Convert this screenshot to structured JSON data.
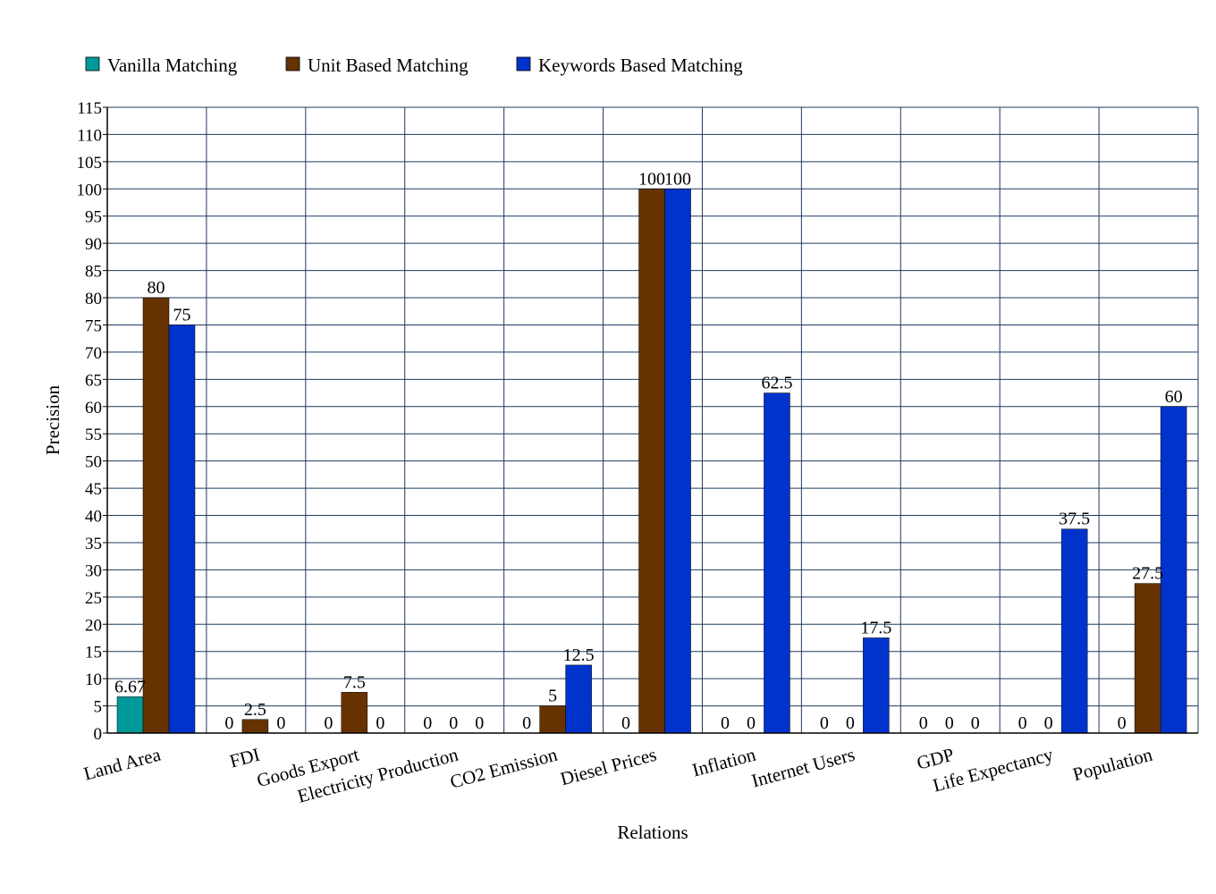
{
  "chart_data": {
    "type": "bar",
    "xlabel": "Relations",
    "ylabel": "Precision",
    "ylim": [
      0,
      115
    ],
    "ytick_step": 5,
    "grid": true,
    "legend_position": "top-left",
    "categories": [
      "Land Area",
      "FDI",
      "Goods Export",
      "Electricity Production",
      "CO2 Emission",
      "Diesel Prices",
      "Inflation",
      "Internet Users",
      "GDP",
      "Life Expectancy",
      "Population"
    ],
    "series": [
      {
        "name": "Vanilla Matching",
        "color": "#009999",
        "values": [
          6.67,
          0,
          0,
          0,
          0,
          0,
          0,
          0,
          0,
          0,
          0
        ],
        "labels": [
          "6.67",
          "0",
          "0",
          "0",
          "0",
          "0",
          "0",
          "0",
          "0",
          "0",
          "0"
        ]
      },
      {
        "name": "Unit Based Matching",
        "color": "#663300",
        "values": [
          80,
          2.5,
          7.5,
          0,
          5,
          100,
          0,
          0,
          0,
          0,
          27.5
        ],
        "labels": [
          "80",
          "2.5",
          "7.5",
          "0",
          "5",
          "100",
          "0",
          "0",
          "0",
          "0",
          "27.5"
        ]
      },
      {
        "name": "Keywords Based Matching",
        "color": "#0033CC",
        "values": [
          75,
          0,
          0,
          0,
          12.5,
          100,
          62.5,
          17.5,
          0,
          37.5,
          60
        ],
        "labels": [
          "75",
          "0",
          "0",
          "0",
          "12.5",
          "100",
          "62.5",
          "17.5",
          "0",
          "37.5",
          "60"
        ]
      }
    ],
    "grid_color": "#1f3a5f"
  }
}
